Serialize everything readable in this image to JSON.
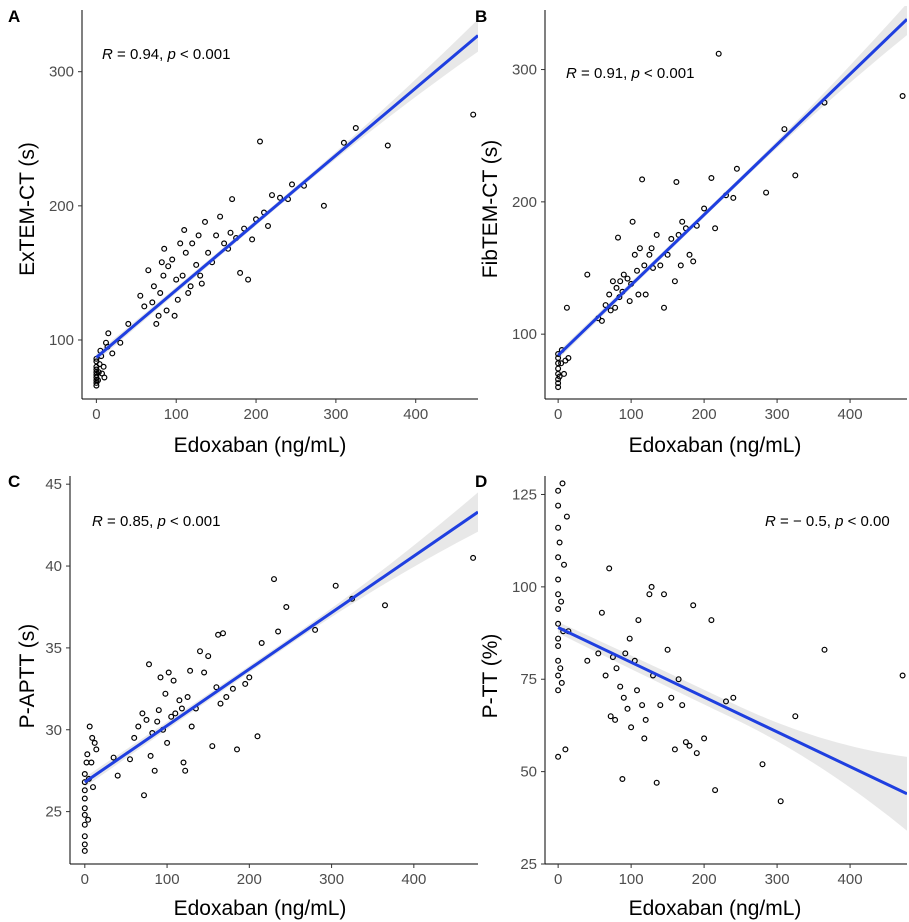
{
  "chart_data": [
    {
      "type": "scatter",
      "panel": "A",
      "xlabel": "Edoxaban (ng/mL)",
      "ylabel": "ExTEM-CT (s)",
      "stat": {
        "r_label": "R",
        "r_value": " = 0.94, ",
        "p_label": "p",
        "p_value": " < 0.001"
      },
      "xlim": [
        -18,
        478
      ],
      "ylim": [
        56,
        346
      ],
      "xticks": [
        0,
        100,
        200,
        300,
        400
      ],
      "yticks": [
        100,
        200,
        300
      ],
      "fit": {
        "x0": 0,
        "y0": 87,
        "x1": 478,
        "y1": 327
      },
      "ci_width": {
        "low": 3,
        "mid": 2,
        "high": 12
      },
      "points": [
        [
          0,
          66
        ],
        [
          0,
          68
        ],
        [
          0,
          70
        ],
        [
          0,
          72
        ],
        [
          0,
          74
        ],
        [
          0,
          76
        ],
        [
          0,
          78
        ],
        [
          0,
          80
        ],
        [
          0,
          84
        ],
        [
          0,
          86
        ],
        [
          2,
          70
        ],
        [
          3,
          76
        ],
        [
          4,
          82
        ],
        [
          5,
          92
        ],
        [
          6,
          88
        ],
        [
          7,
          75
        ],
        [
          9,
          80
        ],
        [
          10,
          72
        ],
        [
          12,
          98
        ],
        [
          14,
          95
        ],
        [
          15,
          105
        ],
        [
          20,
          90
        ],
        [
          30,
          98
        ],
        [
          40,
          112
        ],
        [
          55,
          133
        ],
        [
          60,
          125
        ],
        [
          65,
          152
        ],
        [
          70,
          128
        ],
        [
          72,
          140
        ],
        [
          75,
          112
        ],
        [
          78,
          118
        ],
        [
          80,
          135
        ],
        [
          82,
          158
        ],
        [
          84,
          148
        ],
        [
          85,
          168
        ],
        [
          88,
          122
        ],
        [
          90,
          155
        ],
        [
          95,
          160
        ],
        [
          98,
          118
        ],
        [
          100,
          145
        ],
        [
          102,
          130
        ],
        [
          105,
          172
        ],
        [
          108,
          148
        ],
        [
          110,
          182
        ],
        [
          112,
          165
        ],
        [
          115,
          135
        ],
        [
          118,
          140
        ],
        [
          120,
          172
        ],
        [
          125,
          156
        ],
        [
          128,
          178
        ],
        [
          130,
          148
        ],
        [
          132,
          142
        ],
        [
          136,
          188
        ],
        [
          140,
          165
        ],
        [
          145,
          158
        ],
        [
          150,
          178
        ],
        [
          155,
          192
        ],
        [
          160,
          172
        ],
        [
          165,
          168
        ],
        [
          168,
          180
        ],
        [
          170,
          205
        ],
        [
          175,
          176
        ],
        [
          180,
          150
        ],
        [
          185,
          183
        ],
        [
          190,
          145
        ],
        [
          195,
          175
        ],
        [
          200,
          190
        ],
        [
          205,
          248
        ],
        [
          210,
          195
        ],
        [
          215,
          185
        ],
        [
          220,
          208
        ],
        [
          230,
          206
        ],
        [
          240,
          205
        ],
        [
          245,
          216
        ],
        [
          260,
          215
        ],
        [
          285,
          200
        ],
        [
          310,
          247
        ],
        [
          325,
          258
        ],
        [
          365,
          245
        ],
        [
          472,
          268
        ]
      ]
    },
    {
      "type": "scatter",
      "panel": "B",
      "xlabel": "Edoxaban (ng/mL)",
      "ylabel": "FibTEM-CT (s)",
      "stat": {
        "r_label": "R",
        "r_value": " = 0.91, ",
        "p_label": "p",
        "p_value": " < 0.001"
      },
      "xlim": [
        -18,
        478
      ],
      "ylim": [
        51,
        345
      ],
      "xticks": [
        0,
        100,
        200,
        300,
        400
      ],
      "yticks": [
        100,
        200,
        300
      ],
      "fit": {
        "x0": 0,
        "y0": 84,
        "x1": 478,
        "y1": 338
      },
      "ci_width": {
        "low": 3,
        "mid": 2,
        "high": 12
      },
      "points": [
        [
          0,
          60
        ],
        [
          0,
          63
        ],
        [
          0,
          66
        ],
        [
          0,
          70
        ],
        [
          0,
          74
        ],
        [
          0,
          78
        ],
        [
          0,
          82
        ],
        [
          0,
          85
        ],
        [
          2,
          68
        ],
        [
          4,
          78
        ],
        [
          5,
          88
        ],
        [
          8,
          70
        ],
        [
          10,
          80
        ],
        [
          12,
          120
        ],
        [
          14,
          82
        ],
        [
          40,
          145
        ],
        [
          55,
          112
        ],
        [
          60,
          110
        ],
        [
          65,
          122
        ],
        [
          70,
          130
        ],
        [
          72,
          118
        ],
        [
          75,
          140
        ],
        [
          78,
          120
        ],
        [
          80,
          135
        ],
        [
          82,
          173
        ],
        [
          84,
          128
        ],
        [
          85,
          140
        ],
        [
          88,
          132
        ],
        [
          90,
          145
        ],
        [
          95,
          142
        ],
        [
          98,
          125
        ],
        [
          100,
          138
        ],
        [
          102,
          185
        ],
        [
          105,
          160
        ],
        [
          108,
          148
        ],
        [
          110,
          130
        ],
        [
          112,
          165
        ],
        [
          115,
          217
        ],
        [
          118,
          152
        ],
        [
          120,
          130
        ],
        [
          125,
          160
        ],
        [
          128,
          165
        ],
        [
          130,
          150
        ],
        [
          135,
          175
        ],
        [
          140,
          152
        ],
        [
          145,
          120
        ],
        [
          150,
          160
        ],
        [
          155,
          172
        ],
        [
          160,
          140
        ],
        [
          162,
          215
        ],
        [
          165,
          175
        ],
        [
          168,
          152
        ],
        [
          170,
          185
        ],
        [
          175,
          180
        ],
        [
          180,
          160
        ],
        [
          185,
          155
        ],
        [
          190,
          182
        ],
        [
          200,
          195
        ],
        [
          210,
          218
        ],
        [
          215,
          180
        ],
        [
          220,
          312
        ],
        [
          230,
          205
        ],
        [
          240,
          203
        ],
        [
          245,
          225
        ],
        [
          285,
          207
        ],
        [
          310,
          255
        ],
        [
          325,
          220
        ],
        [
          365,
          275
        ],
        [
          472,
          280
        ]
      ]
    },
    {
      "type": "scatter",
      "panel": "C",
      "xlabel": "Edoxaban (ng/mL)",
      "ylabel": "P-APTT (s)",
      "stat": {
        "r_label": "R",
        "r_value": " = 0.85, ",
        "p_label": "p",
        "p_value": " < 0.001"
      },
      "xlim": [
        -18,
        478
      ],
      "ylim": [
        21.8,
        45.5
      ],
      "xticks": [
        0,
        100,
        200,
        300,
        400
      ],
      "yticks": [
        25,
        30,
        35,
        40,
        45
      ],
      "fit": {
        "x0": 0,
        "y0": 26.8,
        "x1": 478,
        "y1": 43.3
      },
      "ci_width": {
        "low": 0.3,
        "mid": 0.2,
        "high": 1.2
      },
      "points": [
        [
          0,
          22.6
        ],
        [
          0,
          23.0
        ],
        [
          0,
          23.5
        ],
        [
          0,
          24.2
        ],
        [
          0,
          24.8
        ],
        [
          0,
          25.2
        ],
        [
          0,
          25.8
        ],
        [
          0,
          26.3
        ],
        [
          0,
          26.8
        ],
        [
          0,
          27.3
        ],
        [
          2,
          28.0
        ],
        [
          3,
          28.5
        ],
        [
          4,
          24.5
        ],
        [
          5,
          27.0
        ],
        [
          6,
          30.2
        ],
        [
          8,
          28.0
        ],
        [
          9,
          29.5
        ],
        [
          10,
          26.5
        ],
        [
          12,
          29.2
        ],
        [
          14,
          28.8
        ],
        [
          35,
          28.3
        ],
        [
          40,
          27.2
        ],
        [
          55,
          28.2
        ],
        [
          60,
          29.5
        ],
        [
          65,
          30.2
        ],
        [
          70,
          31.0
        ],
        [
          72,
          26.0
        ],
        [
          75,
          30.6
        ],
        [
          78,
          34.0
        ],
        [
          80,
          28.4
        ],
        [
          82,
          29.8
        ],
        [
          85,
          27.5
        ],
        [
          88,
          30.5
        ],
        [
          90,
          31.2
        ],
        [
          92,
          33.2
        ],
        [
          95,
          30.0
        ],
        [
          98,
          32.2
        ],
        [
          100,
          29.2
        ],
        [
          102,
          33.5
        ],
        [
          105,
          30.8
        ],
        [
          108,
          33.0
        ],
        [
          110,
          31.0
        ],
        [
          115,
          31.8
        ],
        [
          118,
          31.3
        ],
        [
          120,
          28.0
        ],
        [
          122,
          27.5
        ],
        [
          125,
          32.0
        ],
        [
          128,
          33.6
        ],
        [
          130,
          30.2
        ],
        [
          135,
          31.3
        ],
        [
          140,
          34.8
        ],
        [
          145,
          33.5
        ],
        [
          150,
          34.5
        ],
        [
          155,
          29.0
        ],
        [
          160,
          32.6
        ],
        [
          162,
          35.8
        ],
        [
          165,
          31.6
        ],
        [
          168,
          35.9
        ],
        [
          172,
          32.0
        ],
        [
          180,
          32.5
        ],
        [
          185,
          28.8
        ],
        [
          195,
          32.8
        ],
        [
          200,
          33.2
        ],
        [
          210,
          29.6
        ],
        [
          215,
          35.3
        ],
        [
          230,
          39.2
        ],
        [
          235,
          36.0
        ],
        [
          245,
          37.5
        ],
        [
          280,
          36.1
        ],
        [
          305,
          38.8
        ],
        [
          325,
          38.0
        ],
        [
          365,
          37.6
        ],
        [
          472,
          40.5
        ]
      ]
    },
    {
      "type": "scatter",
      "panel": "D",
      "xlabel": "Edoxaban (ng/mL)",
      "ylabel": "P-TT (%)",
      "stat": {
        "r_label": "R",
        "r_value": " = − 0.5, ",
        "p_label": "p",
        "p_value": " < 0.00"
      },
      "xlim": [
        -18,
        478
      ],
      "ylim": [
        25,
        130
      ],
      "xticks": [
        0,
        100,
        200,
        300,
        400
      ],
      "yticks": [
        25,
        50,
        75,
        100,
        125
      ],
      "fit": {
        "x0": 0,
        "y0": 89,
        "x1": 478,
        "y1": 44
      },
      "ci_width": {
        "low": 1.5,
        "mid": 2,
        "high": 10
      },
      "points": [
        [
          0,
          54
        ],
        [
          0,
          72
        ],
        [
          0,
          76
        ],
        [
          0,
          80
        ],
        [
          0,
          84
        ],
        [
          0,
          86
        ],
        [
          0,
          90
        ],
        [
          0,
          94
        ],
        [
          0,
          98
        ],
        [
          0,
          102
        ],
        [
          0,
          108
        ],
        [
          0,
          116
        ],
        [
          0,
          122
        ],
        [
          0,
          126
        ],
        [
          2,
          112
        ],
        [
          3,
          78
        ],
        [
          4,
          96
        ],
        [
          5,
          74
        ],
        [
          6,
          128
        ],
        [
          7,
          88
        ],
        [
          8,
          106
        ],
        [
          10,
          56
        ],
        [
          12,
          119
        ],
        [
          14,
          88
        ],
        [
          40,
          80
        ],
        [
          55,
          82
        ],
        [
          60,
          93
        ],
        [
          65,
          76
        ],
        [
          70,
          105
        ],
        [
          72,
          65
        ],
        [
          75,
          81
        ],
        [
          78,
          64
        ],
        [
          80,
          78
        ],
        [
          85,
          73
        ],
        [
          88,
          48
        ],
        [
          90,
          70
        ],
        [
          92,
          82
        ],
        [
          95,
          67
        ],
        [
          98,
          86
        ],
        [
          100,
          62
        ],
        [
          105,
          80
        ],
        [
          108,
          72
        ],
        [
          110,
          91
        ],
        [
          115,
          68
        ],
        [
          118,
          59
        ],
        [
          120,
          64
        ],
        [
          125,
          98
        ],
        [
          128,
          100
        ],
        [
          130,
          76
        ],
        [
          135,
          47
        ],
        [
          140,
          68
        ],
        [
          145,
          98
        ],
        [
          150,
          83
        ],
        [
          155,
          70
        ],
        [
          160,
          56
        ],
        [
          165,
          75
        ],
        [
          170,
          68
        ],
        [
          175,
          58
        ],
        [
          180,
          57
        ],
        [
          185,
          95
        ],
        [
          190,
          55
        ],
        [
          200,
          59
        ],
        [
          210,
          91
        ],
        [
          215,
          45
        ],
        [
          230,
          69
        ],
        [
          240,
          70
        ],
        [
          280,
          52
        ],
        [
          305,
          42
        ],
        [
          325,
          65
        ],
        [
          365,
          83
        ],
        [
          472,
          76
        ]
      ]
    }
  ]
}
